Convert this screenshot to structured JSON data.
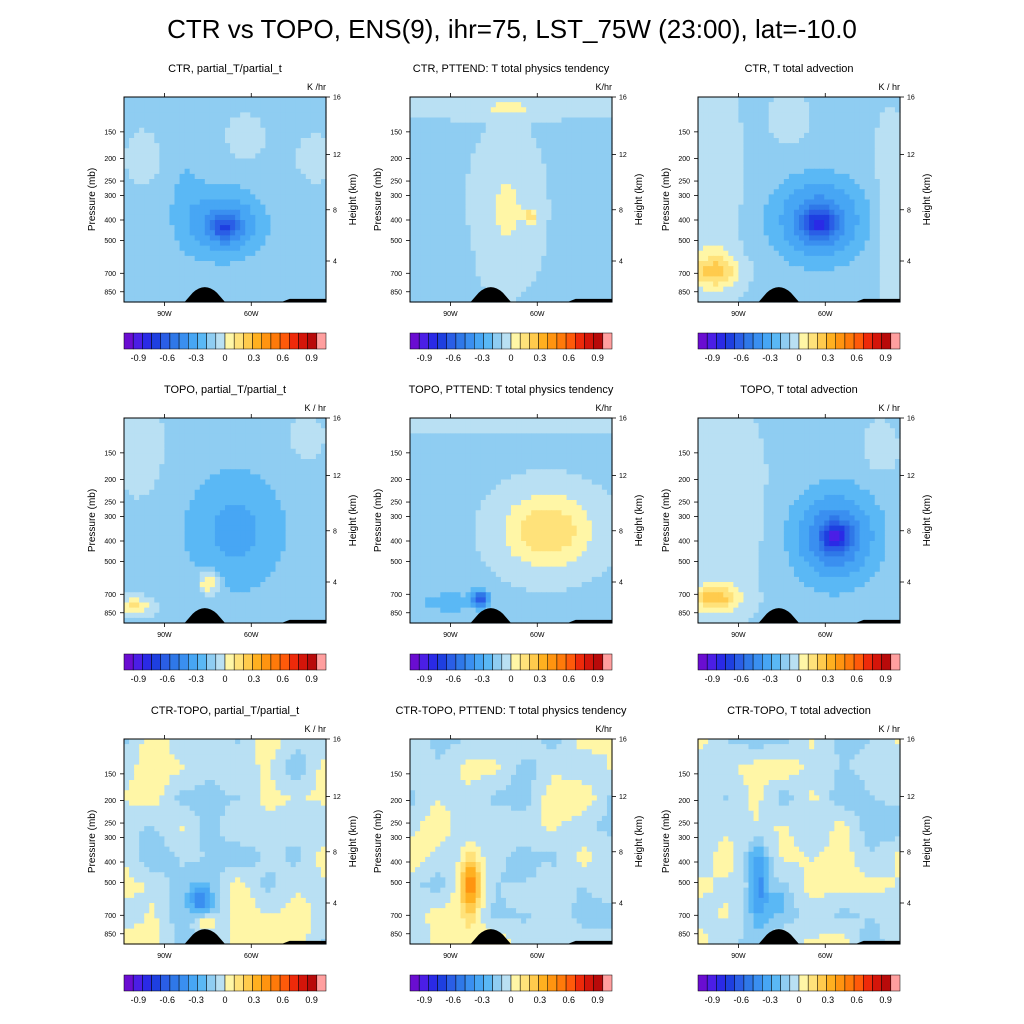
{
  "figure_title": "CTR vs TOPO, ENS(9), ihr=75, LST_75W (23:00), lat=-10.0",
  "colors": {
    "levels": [
      -1.05,
      -0.95,
      -0.85,
      -0.75,
      -0.65,
      -0.55,
      -0.45,
      -0.35,
      -0.25,
      -0.15,
      -0.05,
      0.05,
      0.15,
      0.25,
      0.35,
      0.45,
      0.55,
      0.65,
      0.75,
      0.85,
      0.95,
      1.05
    ],
    "palette": [
      "#6a0dd1",
      "#4b1ee6",
      "#2a2ae6",
      "#1e3fe0",
      "#2a5ee6",
      "#2f78e8",
      "#3a8ff0",
      "#47a6f4",
      "#5ab8f5",
      "#8fcdf2",
      "#b9e0f3",
      "#fff6a6",
      "#ffe27a",
      "#ffcb4d",
      "#ffb020",
      "#ff9410",
      "#ff7a0a",
      "#ff5a0a",
      "#ee2a0a",
      "#d4150a",
      "#b80a0a",
      "#ff9f9f"
    ],
    "terrain": "#000000"
  },
  "panels": [
    {
      "title": "CTR, partial_T/partial_t",
      "units": "K /hr"
    },
    {
      "title": "CTR, PTTEND: T total physics tendency",
      "units": "K/hr"
    },
    {
      "title": "CTR, T total advection",
      "units": "K / hr"
    },
    {
      "title": "TOPO, partial_T/partial_t",
      "units": "K / hr"
    },
    {
      "title": "TOPO, PTTEND: T total physics tendency",
      "units": "K/hr"
    },
    {
      "title": "TOPO, T total advection",
      "units": "K / hr"
    },
    {
      "title": "CTR-TOPO, partial_T/partial_t",
      "units": "K / hr"
    },
    {
      "title": "CTR-TOPO, PTTEND: T total physics tendency",
      "units": "K/hr"
    },
    {
      "title": "CTR-TOPO, T total advection",
      "units": "K / hr"
    }
  ],
  "axes": {
    "left_label": "Pressure (mb)",
    "right_label": "Height (km)",
    "pressure_ticks": [
      "150",
      "200",
      "250",
      "300",
      "400",
      "500",
      "700",
      "850"
    ],
    "height_ticks": [
      "16",
      "12",
      "8",
      "4"
    ],
    "x_ticks": [
      "90W",
      "60W"
    ]
  },
  "colorbar_labels": [
    "-0.9",
    "-0.6",
    "-0.3",
    "0",
    "0.3",
    "0.6",
    "0.9"
  ],
  "chart_data": {
    "type": "heatmap",
    "title": "CTR vs TOPO, ENS(9), ihr=75, LST_75W (23:00), lat=-10.0",
    "x": [
      "90W",
      "60W"
    ],
    "y_left": [
      150,
      200,
      250,
      300,
      400,
      500,
      700,
      850
    ],
    "y_right": [
      4,
      8,
      12,
      16
    ],
    "ylabel": "Pressure (mb)",
    "ylabel_right": "Height (km)",
    "value_range": [
      -1.05,
      1.05
    ],
    "panels": [
      {
        "name": "CTR, partial_T/partial_t",
        "fields": [
          {
            "type": "blob",
            "x": 0.3,
            "y": 0.45,
            "rx": 0.1,
            "ry": 0.32,
            "v": -0.08
          },
          {
            "type": "blob",
            "x": 0.5,
            "y": 0.62,
            "rx": 0.18,
            "ry": 0.16,
            "v": -0.35
          },
          {
            "type": "blob",
            "x": 0.5,
            "y": 0.64,
            "rx": 0.06,
            "ry": 0.05,
            "v": -0.3
          },
          {
            "type": "blob",
            "x": 0.1,
            "y": 0.3,
            "rx": 0.08,
            "ry": 0.12,
            "v": 0.08
          },
          {
            "type": "blob",
            "x": 0.6,
            "y": 0.2,
            "rx": 0.08,
            "ry": 0.1,
            "v": 0.08
          },
          {
            "type": "blob",
            "x": 0.95,
            "y": 0.3,
            "rx": 0.08,
            "ry": 0.1,
            "v": 0.08
          }
        ]
      },
      {
        "name": "CTR, PTTEND: T total physics tendency",
        "fields": [
          {
            "type": "blob",
            "x": 0.48,
            "y": 0.55,
            "rx": 0.15,
            "ry": 0.32,
            "v": 0.14
          },
          {
            "type": "blob",
            "x": 0.48,
            "y": 0.05,
            "rx": 0.55,
            "ry": 0.05,
            "v": 0.12
          },
          {
            "type": "blob",
            "x": 0.15,
            "y": 0.72,
            "rx": 0.12,
            "ry": 0.1,
            "v": -0.05
          },
          {
            "type": "blob",
            "x": 0.6,
            "y": 0.58,
            "rx": 0.03,
            "ry": 0.03,
            "v": 0.25
          }
        ]
      },
      {
        "name": "CTR, T total advection",
        "fields": [
          {
            "type": "blob",
            "x": 0.08,
            "y": 0.5,
            "rx": 0.12,
            "ry": 0.5,
            "v": 0.12
          },
          {
            "type": "blob",
            "x": 0.08,
            "y": 0.85,
            "rx": 0.12,
            "ry": 0.08,
            "v": 0.3
          },
          {
            "type": "blob",
            "x": 0.6,
            "y": 0.6,
            "rx": 0.22,
            "ry": 0.2,
            "v": -0.38
          },
          {
            "type": "blob",
            "x": 0.6,
            "y": 0.62,
            "rx": 0.08,
            "ry": 0.07,
            "v": -0.35
          },
          {
            "type": "blob",
            "x": 0.95,
            "y": 0.55,
            "rx": 0.08,
            "ry": 0.4,
            "v": 0.1
          },
          {
            "type": "blob",
            "x": 0.45,
            "y": 0.1,
            "rx": 0.08,
            "ry": 0.12,
            "v": 0.1
          }
        ]
      },
      {
        "name": "TOPO, partial_T/partial_t",
        "fields": [
          {
            "type": "blob",
            "x": 0.08,
            "y": 0.15,
            "rx": 0.1,
            "ry": 0.2,
            "v": 0.1
          },
          {
            "type": "blob",
            "x": 0.55,
            "y": 0.55,
            "rx": 0.25,
            "ry": 0.3,
            "v": -0.22
          },
          {
            "type": "blob",
            "x": 0.42,
            "y": 0.8,
            "rx": 0.05,
            "ry": 0.06,
            "v": 0.3
          },
          {
            "type": "blob",
            "x": 0.05,
            "y": 0.92,
            "rx": 0.08,
            "ry": 0.04,
            "v": 0.25
          },
          {
            "type": "blob",
            "x": 0.9,
            "y": 0.1,
            "rx": 0.08,
            "ry": 0.1,
            "v": 0.08
          }
        ]
      },
      {
        "name": "TOPO, PTTEND: T total physics tendency",
        "fields": [
          {
            "type": "blob",
            "x": 0.68,
            "y": 0.55,
            "rx": 0.22,
            "ry": 0.18,
            "v": 0.32
          },
          {
            "type": "blob",
            "x": 0.48,
            "y": 0.03,
            "rx": 0.55,
            "ry": 0.04,
            "v": 0.12
          },
          {
            "type": "blob",
            "x": 0.35,
            "y": 0.88,
            "rx": 0.04,
            "ry": 0.04,
            "v": -0.55
          },
          {
            "type": "blob",
            "x": 0.2,
            "y": 0.9,
            "rx": 0.15,
            "ry": 0.05,
            "v": -0.15
          }
        ]
      },
      {
        "name": "TOPO, T total advection",
        "fields": [
          {
            "type": "blob",
            "x": 0.12,
            "y": 0.45,
            "rx": 0.18,
            "ry": 0.45,
            "v": 0.12
          },
          {
            "type": "blob",
            "x": 0.08,
            "y": 0.88,
            "rx": 0.12,
            "ry": 0.06,
            "v": 0.35
          },
          {
            "type": "blob",
            "x": 0.68,
            "y": 0.58,
            "rx": 0.2,
            "ry": 0.22,
            "v": -0.42
          },
          {
            "type": "blob",
            "x": 0.68,
            "y": 0.58,
            "rx": 0.06,
            "ry": 0.06,
            "v": -0.45
          },
          {
            "type": "blob",
            "x": 0.9,
            "y": 0.15,
            "rx": 0.08,
            "ry": 0.12,
            "v": 0.08
          }
        ]
      },
      {
        "name": "CTR-TOPO, partial_T/partial_t",
        "fields": [
          {
            "type": "noise",
            "seed": 3,
            "amp": 0.14,
            "bias": 0.0
          },
          {
            "type": "blob",
            "x": 0.38,
            "y": 0.78,
            "rx": 0.05,
            "ry": 0.07,
            "v": -0.35
          },
          {
            "type": "blob",
            "x": 0.4,
            "y": 0.9,
            "rx": 0.06,
            "ry": 0.05,
            "v": 0.25
          }
        ]
      },
      {
        "name": "CTR-TOPO, PTTEND: T total physics tendency",
        "fields": [
          {
            "type": "noise",
            "seed": 7,
            "amp": 0.14,
            "bias": 0.02
          },
          {
            "type": "blob",
            "x": 0.3,
            "y": 0.7,
            "rx": 0.05,
            "ry": 0.18,
            "v": 0.4
          },
          {
            "type": "blob",
            "x": 0.55,
            "y": 0.65,
            "rx": 0.08,
            "ry": 0.1,
            "v": -0.18
          }
        ]
      },
      {
        "name": "CTR-TOPO, T total advection",
        "fields": [
          {
            "type": "noise",
            "seed": 11,
            "amp": 0.14,
            "bias": 0.0
          },
          {
            "type": "blob",
            "x": 0.3,
            "y": 0.72,
            "rx": 0.05,
            "ry": 0.16,
            "v": -0.4
          },
          {
            "type": "blob",
            "x": 0.4,
            "y": 0.8,
            "rx": 0.06,
            "ry": 0.08,
            "v": -0.12
          }
        ]
      }
    ]
  }
}
